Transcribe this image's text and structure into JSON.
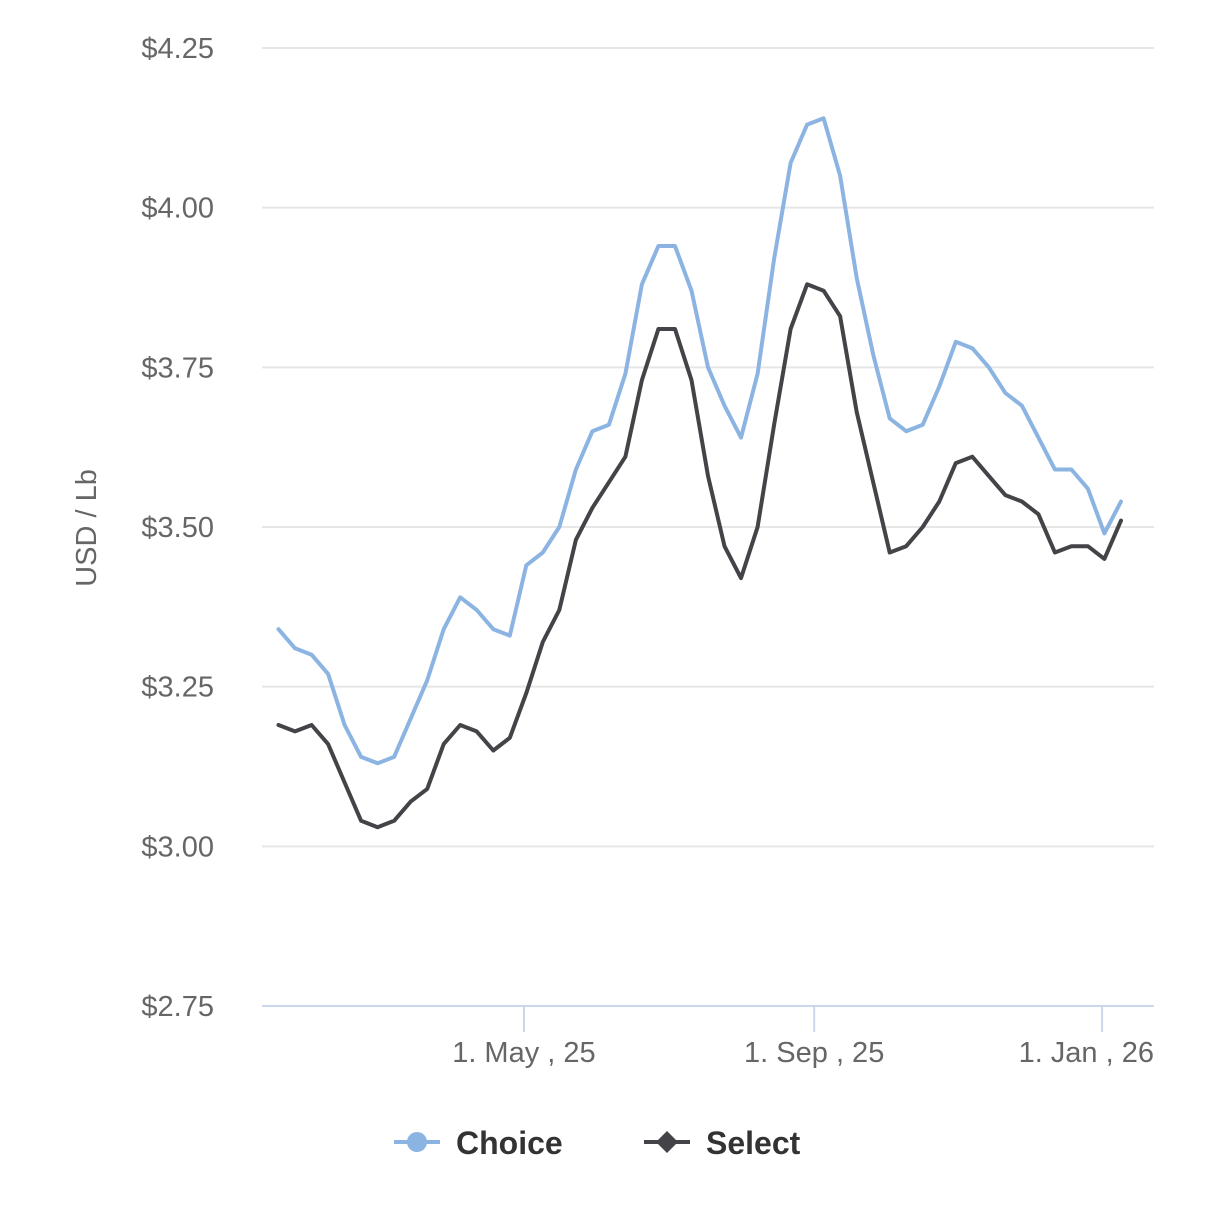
{
  "chart_data": {
    "type": "line",
    "title": "",
    "xlabel": "",
    "ylabel": "USD / Lb",
    "ylim": [
      2.75,
      4.25
    ],
    "yticks": [
      2.75,
      3.0,
      3.25,
      3.5,
      3.75,
      4.0,
      4.25
    ],
    "ytick_labels": [
      "$2.75",
      "$3.00",
      "$3.25",
      "$3.50",
      "$3.75",
      "$4.00",
      "$4.25"
    ],
    "xlim": [
      "2025-01-10",
      "2026-01-23"
    ],
    "xticks": [
      "2025-05-01",
      "2025-09-01",
      "2026-01-01"
    ],
    "xtick_labels": [
      "1. May , 25",
      "1. Sep , 25",
      "1. Jan , 26"
    ],
    "grid": true,
    "legend_position": "bottom-center",
    "x": [
      "2025-01-17",
      "2025-01-24",
      "2025-01-31",
      "2025-02-07",
      "2025-02-14",
      "2025-02-21",
      "2025-02-28",
      "2025-03-07",
      "2025-03-14",
      "2025-03-21",
      "2025-03-28",
      "2025-04-04",
      "2025-04-11",
      "2025-04-18",
      "2025-04-25",
      "2025-05-02",
      "2025-05-09",
      "2025-05-16",
      "2025-05-23",
      "2025-05-30",
      "2025-06-06",
      "2025-06-13",
      "2025-06-20",
      "2025-06-27",
      "2025-07-04",
      "2025-07-11",
      "2025-07-18",
      "2025-07-25",
      "2025-08-01",
      "2025-08-08",
      "2025-08-15",
      "2025-08-22",
      "2025-08-29",
      "2025-09-05",
      "2025-09-12",
      "2025-09-19",
      "2025-09-26",
      "2025-10-03",
      "2025-10-10",
      "2025-10-17",
      "2025-10-24",
      "2025-10-31",
      "2025-11-07",
      "2025-11-14",
      "2025-11-21",
      "2025-11-28",
      "2025-12-05",
      "2025-12-12",
      "2025-12-19",
      "2025-12-26",
      "2026-01-02",
      "2026-01-09"
    ],
    "series": [
      {
        "name": "Choice",
        "color": "#8cb4e2",
        "marker": "circle",
        "values": [
          3.34,
          3.31,
          3.3,
          3.27,
          3.19,
          3.14,
          3.13,
          3.14,
          3.2,
          3.26,
          3.34,
          3.39,
          3.37,
          3.34,
          3.33,
          3.44,
          3.46,
          3.5,
          3.59,
          3.65,
          3.66,
          3.74,
          3.88,
          3.94,
          3.94,
          3.87,
          3.75,
          3.69,
          3.64,
          3.74,
          3.92,
          4.07,
          4.13,
          4.14,
          4.05,
          3.89,
          3.77,
          3.67,
          3.65,
          3.66,
          3.72,
          3.79,
          3.78,
          3.75,
          3.71,
          3.69,
          3.64,
          3.59,
          3.59,
          3.56,
          3.49,
          3.54
        ]
      },
      {
        "name": "Select",
        "color": "#434348",
        "marker": "diamond",
        "values": [
          3.19,
          3.18,
          3.19,
          3.16,
          3.1,
          3.04,
          3.03,
          3.04,
          3.07,
          3.09,
          3.16,
          3.19,
          3.18,
          3.15,
          3.17,
          3.24,
          3.32,
          3.37,
          3.48,
          3.53,
          3.57,
          3.61,
          3.73,
          3.81,
          3.81,
          3.73,
          3.58,
          3.47,
          3.42,
          3.5,
          3.66,
          3.81,
          3.88,
          3.87,
          3.83,
          3.68,
          3.57,
          3.46,
          3.47,
          3.5,
          3.54,
          3.6,
          3.61,
          3.58,
          3.55,
          3.54,
          3.52,
          3.46,
          3.47,
          3.47,
          3.45,
          3.51
        ]
      }
    ]
  }
}
